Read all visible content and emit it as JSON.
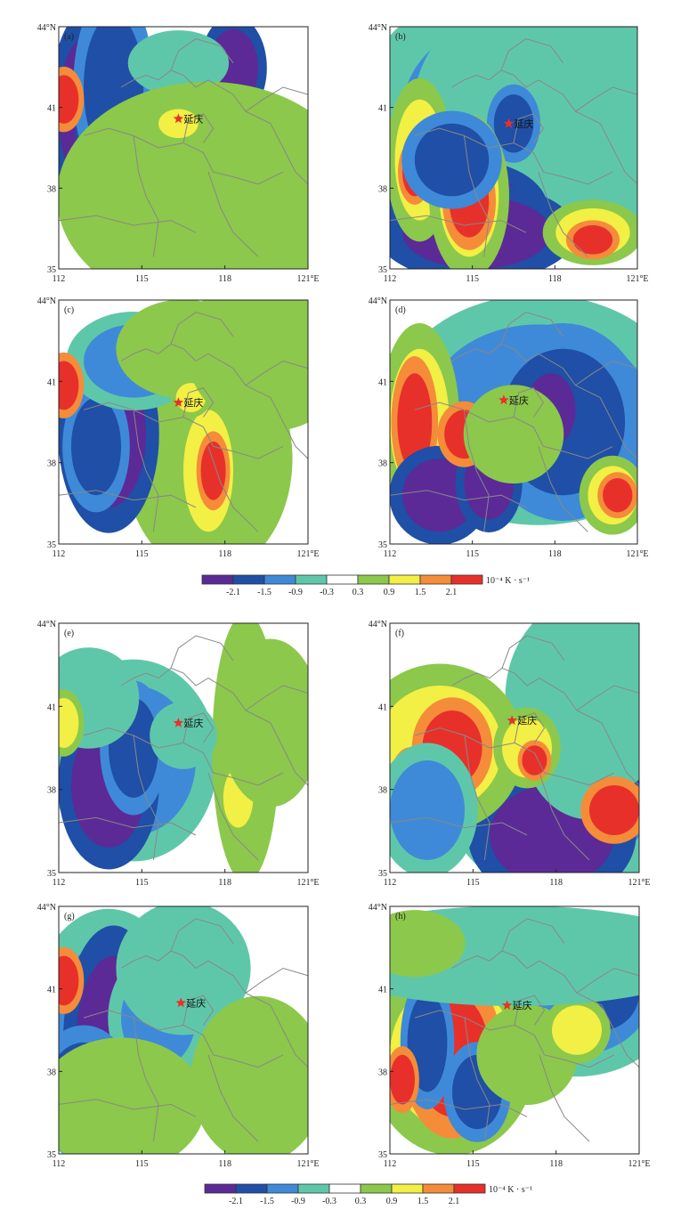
{
  "colorbar": {
    "levels": [
      "-2.1",
      "-1.5",
      "-0.9",
      "-0.3",
      "0.3",
      "0.9",
      "1.5",
      "2.1"
    ],
    "colors": [
      "#5b2a96",
      "#1f4fa6",
      "#3e8ad8",
      "#5fc7a9",
      "#ffffff",
      "#8cc84b",
      "#f2ef45",
      "#f58c3a",
      "#e8302a"
    ],
    "unit": "10⁻⁴ K · s⁻¹"
  },
  "axes": {
    "x_ticks": [
      "112",
      "115",
      "118",
      "121°E"
    ],
    "y_ticks": [
      "35",
      "38",
      "41",
      "44°N"
    ]
  },
  "city": {
    "name": "延庆",
    "marker_color": "#e8302a"
  },
  "border_color": "#888888",
  "panels": [
    {
      "label": "(a)",
      "blobs": [
        [
          0.1,
          0.35,
          0.1,
          0.3,
          0
        ],
        [
          0.2,
          0.4,
          0.1,
          0.18,
          0
        ],
        [
          0.22,
          0.25,
          0.12,
          0.3,
          1
        ],
        [
          0.7,
          0.17,
          0.1,
          0.16,
          0
        ],
        [
          0.45,
          0.75,
          0.3,
          0.25,
          6
        ],
        [
          0.78,
          0.6,
          0.1,
          0.08,
          6
        ],
        [
          0.48,
          0.15,
          0.15,
          0.1,
          3
        ],
        [
          0.6,
          0.7,
          0.45,
          0.35,
          5
        ],
        [
          0.02,
          0.3,
          0.06,
          0.1,
          8
        ],
        [
          0.48,
          0.4,
          0.08,
          0.06,
          6
        ]
      ]
    },
    {
      "label": "(b)",
      "blobs": [
        [
          0.55,
          0.35,
          0.5,
          0.4,
          2
        ],
        [
          0.7,
          0.35,
          0.45,
          0.4,
          3
        ],
        [
          0.5,
          0.4,
          0.08,
          0.12,
          1
        ],
        [
          0.3,
          0.75,
          0.25,
          0.15,
          0
        ],
        [
          0.35,
          0.85,
          0.3,
          0.15,
          0
        ],
        [
          0.12,
          0.55,
          0.1,
          0.25,
          6
        ],
        [
          0.1,
          0.6,
          0.05,
          0.1,
          8
        ],
        [
          0.32,
          0.7,
          0.12,
          0.25,
          6
        ],
        [
          0.32,
          0.72,
          0.08,
          0.15,
          8
        ],
        [
          0.82,
          0.85,
          0.15,
          0.1,
          6
        ],
        [
          0.82,
          0.88,
          0.08,
          0.06,
          8
        ],
        [
          0.25,
          0.55,
          0.15,
          0.15,
          1
        ]
      ]
    },
    {
      "label": "(c)",
      "blobs": [
        [
          0.6,
          0.65,
          0.25,
          0.35,
          5
        ],
        [
          0.6,
          0.7,
          0.1,
          0.25,
          6
        ],
        [
          0.62,
          0.7,
          0.05,
          0.12,
          8
        ],
        [
          0.2,
          0.55,
          0.15,
          0.3,
          0
        ],
        [
          0.15,
          0.6,
          0.1,
          0.2,
          1
        ],
        [
          0.3,
          0.25,
          0.2,
          0.15,
          2
        ],
        [
          0.5,
          0.2,
          0.2,
          0.15,
          5
        ],
        [
          0.53,
          0.4,
          0.06,
          0.06,
          6
        ],
        [
          0.02,
          0.35,
          0.06,
          0.1,
          8
        ],
        [
          0.85,
          0.2,
          0.25,
          0.25,
          5
        ]
      ]
    },
    {
      "label": "(d)",
      "blobs": [
        [
          0.6,
          0.45,
          0.45,
          0.35,
          2
        ],
        [
          0.7,
          0.5,
          0.25,
          0.3,
          1
        ],
        [
          0.65,
          0.45,
          0.1,
          0.15,
          0
        ],
        [
          0.12,
          0.5,
          0.12,
          0.3,
          6
        ],
        [
          0.1,
          0.5,
          0.07,
          0.2,
          8
        ],
        [
          0.2,
          0.8,
          0.15,
          0.15,
          0
        ],
        [
          0.4,
          0.75,
          0.1,
          0.15,
          0
        ],
        [
          0.9,
          0.8,
          0.1,
          0.12,
          6
        ],
        [
          0.92,
          0.8,
          0.06,
          0.07,
          8
        ],
        [
          0.3,
          0.55,
          0.08,
          0.1,
          8
        ],
        [
          0.5,
          0.55,
          0.15,
          0.15,
          5
        ]
      ]
    },
    {
      "label": "(e)",
      "blobs": [
        [
          0.3,
          0.55,
          0.25,
          0.3,
          2
        ],
        [
          0.2,
          0.65,
          0.15,
          0.25,
          0
        ],
        [
          0.3,
          0.5,
          0.1,
          0.2,
          1
        ],
        [
          0.75,
          0.5,
          0.1,
          0.4,
          5
        ],
        [
          0.72,
          0.7,
          0.06,
          0.12,
          6
        ],
        [
          0.85,
          0.4,
          0.15,
          0.25,
          5
        ],
        [
          0.5,
          0.45,
          0.1,
          0.1,
          3
        ],
        [
          0.12,
          0.3,
          0.15,
          0.15,
          3
        ],
        [
          0.02,
          0.4,
          0.06,
          0.1,
          6
        ]
      ]
    },
    {
      "label": "(f)",
      "blobs": [
        [
          0.7,
          0.7,
          0.35,
          0.3,
          2
        ],
        [
          0.65,
          0.85,
          0.25,
          0.2,
          0
        ],
        [
          0.8,
          0.45,
          0.2,
          0.25,
          2
        ],
        [
          0.88,
          0.55,
          0.1,
          0.15,
          0
        ],
        [
          0.8,
          0.3,
          0.25,
          0.3,
          3
        ],
        [
          0.2,
          0.5,
          0.25,
          0.25,
          6
        ],
        [
          0.25,
          0.5,
          0.12,
          0.15,
          8
        ],
        [
          0.08,
          0.7,
          0.07,
          0.15,
          8
        ],
        [
          0.55,
          0.5,
          0.1,
          0.12,
          6
        ],
        [
          0.58,
          0.55,
          0.05,
          0.06,
          8
        ],
        [
          0.9,
          0.75,
          0.1,
          0.1,
          8
        ],
        [
          0.15,
          0.75,
          0.15,
          0.2,
          2
        ]
      ]
    },
    {
      "label": "(g)",
      "blobs": [
        [
          0.2,
          0.55,
          0.25,
          0.4,
          2
        ],
        [
          0.22,
          0.55,
          0.15,
          0.35,
          0
        ],
        [
          0.4,
          0.45,
          0.15,
          0.2,
          2
        ],
        [
          0.1,
          0.75,
          0.15,
          0.2,
          1
        ],
        [
          0.5,
          0.25,
          0.2,
          0.2,
          3
        ],
        [
          0.8,
          0.7,
          0.2,
          0.25,
          5
        ],
        [
          0.02,
          0.3,
          0.06,
          0.1,
          8
        ],
        [
          0.25,
          0.8,
          0.25,
          0.2,
          5
        ]
      ]
    },
    {
      "label": "(h)",
      "blobs": [
        [
          0.75,
          0.35,
          0.3,
          0.25,
          2
        ],
        [
          0.85,
          0.35,
          0.15,
          0.15,
          1
        ],
        [
          0.25,
          0.6,
          0.25,
          0.3,
          6
        ],
        [
          0.25,
          0.6,
          0.15,
          0.25,
          8
        ],
        [
          0.15,
          0.55,
          0.08,
          0.2,
          1
        ],
        [
          0.35,
          0.75,
          0.1,
          0.15,
          1
        ],
        [
          0.55,
          0.6,
          0.15,
          0.15,
          5
        ],
        [
          0.75,
          0.5,
          0.1,
          0.1,
          6
        ],
        [
          0.5,
          0.2,
          0.6,
          0.15,
          3
        ],
        [
          0.1,
          0.15,
          0.15,
          0.1,
          5
        ],
        [
          0.05,
          0.7,
          0.05,
          0.1,
          8
        ]
      ]
    }
  ]
}
